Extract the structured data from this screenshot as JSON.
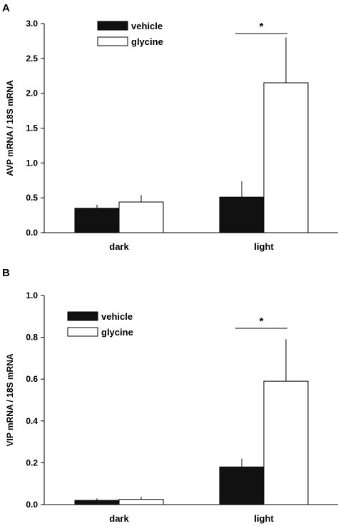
{
  "chart_data": [
    {
      "panel_label": "A",
      "type": "bar",
      "categories": [
        "dark",
        "light"
      ],
      "ylabel": "AVP mRNA / 18S mRNA",
      "xlabel": "",
      "ylim": [
        0,
        3.0
      ],
      "yticks": [
        "0.0",
        "0.5",
        "1.0",
        "1.5",
        "2.0",
        "2.5",
        "3.0"
      ],
      "series": [
        {
          "name": "vehicle",
          "values": [
            0.35,
            0.51
          ],
          "errors": [
            0.05,
            0.23
          ],
          "color": "#111111"
        },
        {
          "name": "glycine",
          "values": [
            0.44,
            2.15
          ],
          "errors": [
            0.1,
            0.65
          ],
          "color": "#ffffff"
        }
      ],
      "significance": {
        "category": "light",
        "label": "*"
      },
      "legend_position": "top-left"
    },
    {
      "panel_label": "B",
      "type": "bar",
      "categories": [
        "dark",
        "light"
      ],
      "ylabel": "VIP mRNA / 18S mRNA",
      "xlabel": "",
      "ylim": [
        0,
        1.0
      ],
      "yticks": [
        "0.0",
        "0.2",
        "0.4",
        "0.6",
        "0.8",
        "1.0"
      ],
      "series": [
        {
          "name": "vehicle",
          "values": [
            0.02,
            0.18
          ],
          "errors": [
            0.01,
            0.04
          ],
          "color": "#111111"
        },
        {
          "name": "glycine",
          "values": [
            0.025,
            0.59
          ],
          "errors": [
            0.012,
            0.2
          ],
          "color": "#ffffff"
        }
      ],
      "significance": {
        "category": "light",
        "label": "*"
      },
      "legend_position": "top-left"
    }
  ]
}
